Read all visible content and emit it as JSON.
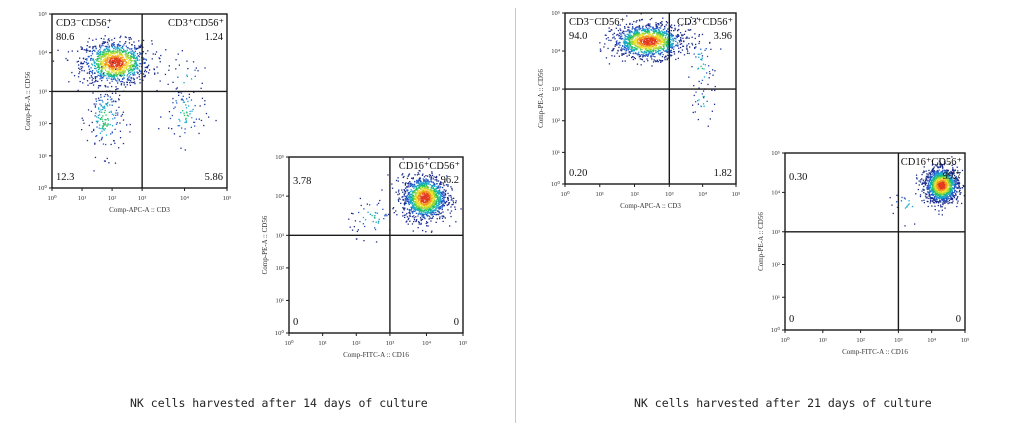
{
  "colors": {
    "border": "#1a1a1a",
    "density": [
      "#1a2a8c",
      "#2457c6",
      "#18a7c9",
      "#1fbf6a",
      "#9bd63a",
      "#f0e030",
      "#f39a1e",
      "#e23b1e"
    ]
  },
  "panels": [
    {
      "caption": "NK cells harvested after 14 days of culture",
      "plots": [
        {
          "xlabel": "Comp-APC-A :: CD3",
          "ylabel": "Comp-PE-A :: CD56",
          "ticks": [
            "10⁰",
            "10¹",
            "10²",
            "10³",
            "10⁴",
            "10⁵"
          ],
          "quadrants": {
            "ul": {
              "label": "CD3⁻CD56⁺",
              "value": "80.6"
            },
            "ur": {
              "label": "CD3⁺CD56⁺",
              "value": "1.24"
            },
            "ll": {
              "label": "",
              "value": "12.3"
            },
            "lr": {
              "label": "",
              "value": "5.86"
            }
          }
        },
        {
          "xlabel": "Comp-FITC-A :: CD16",
          "ylabel": "Comp-PE-A :: CD56",
          "ticks": [
            "10⁰",
            "10¹",
            "10²",
            "10³",
            "10⁴",
            "10⁵"
          ],
          "quadrants": {
            "ul": {
              "label": "",
              "value": "3.78"
            },
            "ur": {
              "label": "CD16⁺CD56⁺",
              "value": "96.2"
            },
            "ll": {
              "label": "",
              "value": "0"
            },
            "lr": {
              "label": "",
              "value": "0"
            }
          }
        }
      ]
    },
    {
      "caption": "NK cells harvested after 21 days of culture",
      "plots": [
        {
          "xlabel": "Comp-APC-A :: CD3",
          "ylabel": "Comp-PE-A :: CD56",
          "ticks": [
            "10⁰",
            "10¹",
            "10²",
            "10³",
            "10⁴",
            "10⁵"
          ],
          "quadrants": {
            "ul": {
              "label": "CD3⁻CD56⁺",
              "value": "94.0"
            },
            "ur": {
              "label": "CD3⁺CD56⁺",
              "value": "3.96"
            },
            "ll": {
              "label": "",
              "value": "0.20"
            },
            "lr": {
              "label": "",
              "value": "1.82"
            }
          }
        },
        {
          "xlabel": "Comp-FITC-A :: CD16",
          "ylabel": "Comp-PE-A :: CD56",
          "ticks": [
            "10⁰",
            "10¹",
            "10²",
            "10³",
            "10⁴",
            "10⁵"
          ],
          "quadrants": {
            "ul": {
              "label": "",
              "value": "0.30"
            },
            "ur": {
              "label": "CD16⁺CD56⁺",
              "value": "99.7"
            },
            "ll": {
              "label": "",
              "value": "0"
            },
            "lr": {
              "label": "",
              "value": "0"
            }
          }
        }
      ]
    }
  ],
  "chart_data": [
    {
      "type": "scatter",
      "xlabel": "Comp-APC-A :: CD3",
      "ylabel": "Comp-PE-A :: CD56",
      "xscale": "log",
      "yscale": "log",
      "xlim": [
        1,
        100000
      ],
      "ylim": [
        1,
        100000
      ],
      "quadrant_gate": {
        "x": 1000,
        "y": 1000
      },
      "quadrant_percentages": {
        "CD3-CD56+": 80.6,
        "CD3+CD56+": 1.24,
        "CD3-CD56-": 12.3,
        "CD3+CD56-": 5.86
      },
      "populations": [
        {
          "center": [
            130,
            5500
          ],
          "spread": [
            0.55,
            0.28
          ],
          "share": 0.806
        },
        {
          "center": [
            60,
            140
          ],
          "spread": [
            0.3,
            0.55
          ],
          "share": 0.123
        },
        {
          "center": [
            10000,
            200
          ],
          "spread": [
            0.25,
            0.5
          ],
          "share": 0.0586
        },
        {
          "center": [
            11000,
            2500
          ],
          "spread": [
            0.2,
            0.25
          ],
          "share": 0.0124
        }
      ]
    },
    {
      "type": "scatter",
      "xlabel": "Comp-FITC-A :: CD16",
      "ylabel": "Comp-PE-A :: CD56",
      "xscale": "log",
      "yscale": "log",
      "xlim": [
        1,
        100000
      ],
      "ylim": [
        1,
        100000
      ],
      "quadrant_gate": {
        "x": 1000,
        "y": 1000
      },
      "quadrant_percentages": {
        "CD16-CD56+": 3.78,
        "CD16+CD56+": 96.2,
        "CD16-CD56-": 0,
        "CD16+CD56-": 0
      },
      "populations": [
        {
          "center": [
            9000,
            9000
          ],
          "spread": [
            0.3,
            0.28
          ],
          "share": 0.962
        },
        {
          "center": [
            300,
            3000
          ],
          "spread": [
            0.35,
            0.25
          ],
          "share": 0.0378
        }
      ]
    },
    {
      "type": "scatter",
      "xlabel": "Comp-APC-A :: CD3",
      "ylabel": "Comp-PE-A :: CD56",
      "xscale": "log",
      "yscale": "log",
      "xlim": [
        1,
        100000
      ],
      "ylim": [
        1,
        100000
      ],
      "quadrant_gate": {
        "x": 1000,
        "y": 1000
      },
      "quadrant_percentages": {
        "CD3-CD56+": 94.0,
        "CD3+CD56+": 3.96,
        "CD3-CD56-": 0.2,
        "CD3+CD56-": 1.82
      },
      "populations": [
        {
          "center": [
            250,
            18000
          ],
          "spread": [
            0.5,
            0.22
          ],
          "share": 0.94
        },
        {
          "center": [
            9000,
            4000
          ],
          "spread": [
            0.2,
            0.45
          ],
          "share": 0.0396
        },
        {
          "center": [
            9000,
            400
          ],
          "spread": [
            0.2,
            0.3
          ],
          "share": 0.0182
        }
      ]
    },
    {
      "type": "scatter",
      "xlabel": "Comp-FITC-A :: CD16",
      "ylabel": "Comp-PE-A :: CD56",
      "xscale": "log",
      "yscale": "log",
      "xlim": [
        1,
        100000
      ],
      "ylim": [
        1,
        100000
      ],
      "quadrant_gate": {
        "x": 1000,
        "y": 1000
      },
      "quadrant_percentages": {
        "CD16-CD56+": 0.3,
        "CD16+CD56+": 99.7,
        "CD16-CD56-": 0,
        "CD16+CD56-": 0
      },
      "populations": [
        {
          "center": [
            20000,
            15000
          ],
          "spread": [
            0.25,
            0.22
          ],
          "share": 0.997
        },
        {
          "center": [
            2000,
            5000
          ],
          "spread": [
            0.3,
            0.2
          ],
          "share": 0.003
        }
      ]
    }
  ]
}
